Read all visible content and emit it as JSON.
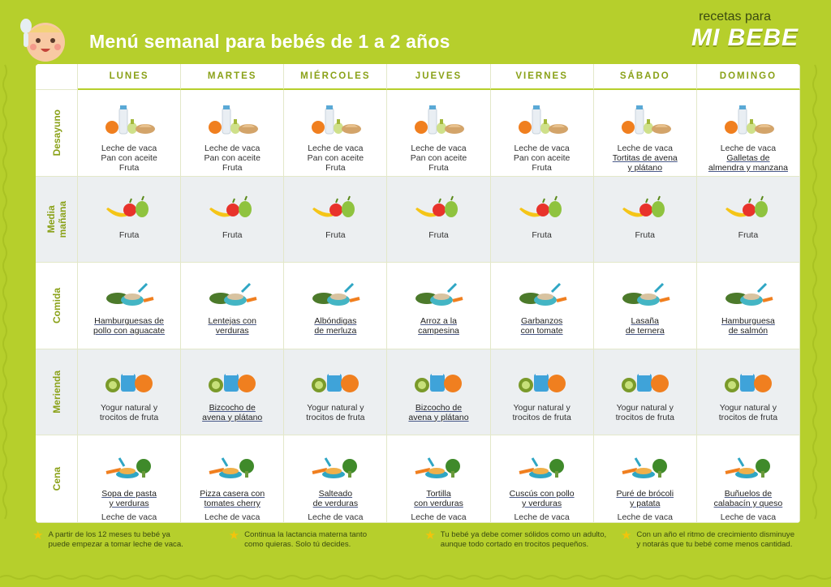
{
  "header": {
    "title": "Menú semanal para bebés de 1 a 2 años",
    "brand_top": "recetas para",
    "brand_main": "MI BEBE"
  },
  "days": [
    "LUNES",
    "MARTES",
    "MIÉRCOLES",
    "JUEVES",
    "VIERNES",
    "SÁBADO",
    "DOMINGO"
  ],
  "meals": [
    {
      "label": "Desayuno",
      "icon": "breakfast",
      "cells": [
        {
          "lines": [
            "Leche de vaca",
            "Pan con aceite",
            "Fruta"
          ],
          "link": "",
          "after": ""
        },
        {
          "lines": [
            "Leche de vaca",
            "Pan con aceite",
            "Fruta"
          ],
          "link": "",
          "after": ""
        },
        {
          "lines": [
            "Leche de vaca",
            "Pan con aceite",
            "Fruta"
          ],
          "link": "",
          "after": ""
        },
        {
          "lines": [
            "Leche de vaca",
            "Pan con aceite",
            "Fruta"
          ],
          "link": "",
          "after": ""
        },
        {
          "lines": [
            "Leche de vaca",
            "Pan con aceite",
            "Fruta"
          ],
          "link": "",
          "after": ""
        },
        {
          "lines": [
            "Leche de vaca"
          ],
          "link": "Tortitas de avena\ny plátano",
          "after": ""
        },
        {
          "lines": [
            "Leche de vaca"
          ],
          "link": "Galletas de\nalmendra y manzana",
          "after": ""
        }
      ]
    },
    {
      "label": "Media\nmañana",
      "icon": "fruit",
      "cells": [
        {
          "lines": [
            "Fruta"
          ],
          "link": "",
          "after": ""
        },
        {
          "lines": [
            "Fruta"
          ],
          "link": "",
          "after": ""
        },
        {
          "lines": [
            "Fruta"
          ],
          "link": "",
          "after": ""
        },
        {
          "lines": [
            "Fruta"
          ],
          "link": "",
          "after": ""
        },
        {
          "lines": [
            "Fruta"
          ],
          "link": "",
          "after": ""
        },
        {
          "lines": [
            "Fruta"
          ],
          "link": "",
          "after": ""
        },
        {
          "lines": [
            "Fruta"
          ],
          "link": "",
          "after": ""
        }
      ]
    },
    {
      "label": "Comida",
      "icon": "lunch",
      "cells": [
        {
          "lines": [],
          "link": "Hamburguesas de\npollo con aguacate",
          "after": ""
        },
        {
          "lines": [],
          "link": "Lentejas con\nverduras",
          "after": ""
        },
        {
          "lines": [],
          "link": "Albóndigas\nde merluza",
          "after": ""
        },
        {
          "lines": [],
          "link": "Arroz a la\ncampesina",
          "after": ""
        },
        {
          "lines": [],
          "link": "Garbanzos\ncon tomate",
          "after": ""
        },
        {
          "lines": [],
          "link": "Lasaña\nde ternera",
          "after": ""
        },
        {
          "lines": [],
          "link": "Hamburguesa\nde salmón",
          "after": ""
        }
      ]
    },
    {
      "label": "Merienda",
      "icon": "snack",
      "cells": [
        {
          "lines": [
            "Yogur natural y",
            "trocitos de fruta"
          ],
          "link": "",
          "after": ""
        },
        {
          "lines": [],
          "link": "Bizcocho de\navena y plátano",
          "after": ""
        },
        {
          "lines": [
            "Yogur natural y",
            "trocitos de fruta"
          ],
          "link": "",
          "after": ""
        },
        {
          "lines": [],
          "link": "Bizcocho de\navena y plátano",
          "after": ""
        },
        {
          "lines": [
            "Yogur natural y",
            "trocitos de fruta"
          ],
          "link": "",
          "after": ""
        },
        {
          "lines": [
            "Yogur natural y",
            "trocitos de fruta"
          ],
          "link": "",
          "after": ""
        },
        {
          "lines": [
            "Yogur natural y",
            "trocitos de fruta"
          ],
          "link": "",
          "after": ""
        }
      ]
    },
    {
      "label": "Cena",
      "icon": "dinner",
      "cells": [
        {
          "lines": [],
          "link": "Sopa de pasta\ny verduras",
          "after": "Leche de vaca"
        },
        {
          "lines": [],
          "link": "Pizza casera con\ntomates cherry",
          "after": "Leche de vaca"
        },
        {
          "lines": [],
          "link": "Salteado\nde verduras",
          "after": "Leche de vaca"
        },
        {
          "lines": [],
          "link": "Tortilla\ncon verduras",
          "after": "Leche de vaca"
        },
        {
          "lines": [],
          "link": "Cuscús con pollo\ny verduras",
          "after": "Leche de vaca"
        },
        {
          "lines": [],
          "link": "Puré de brócoli\ny patata",
          "after": "Leche de vaca"
        },
        {
          "lines": [],
          "link": "Buñuelos de\ncalabacín y queso",
          "after": "Leche de vaca"
        }
      ]
    }
  ],
  "notes": [
    "A partir de los 12 meses tu bebé ya\npuede empezar a tomar leche de vaca.",
    "Continua la lactancia materna tanto\ncomo quieras. Solo tú decides.",
    "Tu bebé ya debe comer sólidos como un adulto,\naunque todo cortado en trocitos pequeños.",
    "Con un año el ritmo de crecimiento disminuye\ny notarás que tu bebé come menos cantidad."
  ],
  "colors": {
    "background": "#b6cf2c",
    "accent": "#8aa118",
    "star": "#f2c40c"
  }
}
